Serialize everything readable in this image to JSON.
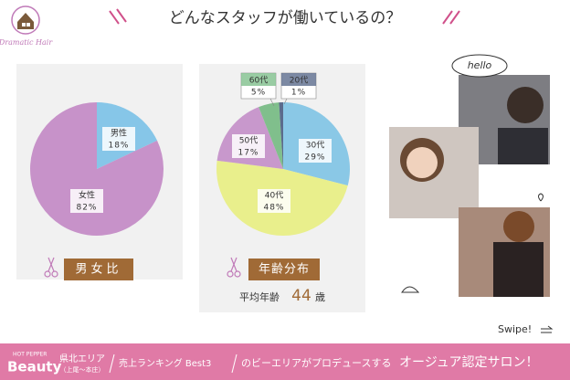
{
  "header": {
    "logo": "Dramatic Hair",
    "title": "どんなスタッフが働いているの？"
  },
  "chart_data": [
    {
      "type": "pie",
      "title": "男女比",
      "categories": [
        "男性",
        "女性"
      ],
      "values": [
        18,
        82
      ],
      "value_labels": [
        "18%",
        "82%"
      ],
      "colors": [
        "#86c6e8",
        "#c792c9"
      ]
    },
    {
      "type": "pie",
      "title": "年齢分布",
      "categories": [
        "30代",
        "40代",
        "50代",
        "60代",
        "20代"
      ],
      "values": [
        29,
        48,
        17,
        5,
        1
      ],
      "value_labels": [
        "29%",
        "48%",
        "17%",
        "5%",
        "1%"
      ],
      "colors": [
        "#8ac8e6",
        "#e9ef8c",
        "#c898cc",
        "#80bf8c",
        "#5b6b8c"
      ]
    }
  ],
  "average_age": {
    "label": "平均年齢",
    "value": 44,
    "unit": "歳"
  },
  "photos": {
    "bubble": "hello",
    "swipe": "Swipe!"
  },
  "footer": {
    "brand_small": "HOT PEPPER",
    "brand": "Beauty",
    "area": "県北エリア",
    "area_sub": "（上尾〜本庄）",
    "ranking": "売上ランキング Best3",
    "produce": "のビーエリアがプロデュースする",
    "salon": "オージュア認定サロン！"
  }
}
